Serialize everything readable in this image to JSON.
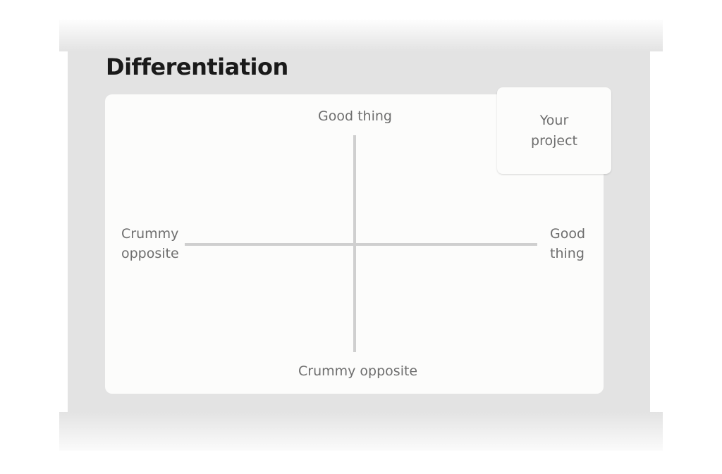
{
  "title": "Differentiation",
  "matrix": {
    "top_label": "Good thing",
    "bottom_label": "Crummy opposite",
    "left_label_line1": "Crummy",
    "left_label_line2": "opposite",
    "right_label_line1": "Good",
    "right_label_line2": "thing",
    "marker_line1": "Your",
    "marker_line2": "project",
    "marker_quadrant": "top-right"
  }
}
